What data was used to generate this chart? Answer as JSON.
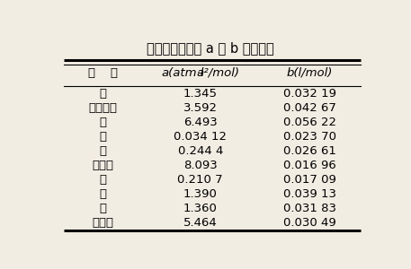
{
  "title": "范德瓦耳斯常数 a 和 b 的实测值",
  "rows": [
    [
      "氩",
      "1.345",
      "0.032 19"
    ],
    [
      "二氧化碳",
      "3.592",
      "0.042 67"
    ],
    [
      "氯",
      "6.493",
      "0.056 22"
    ],
    [
      "氦",
      "0.034 12",
      "0.023 70"
    ],
    [
      "氢",
      "0.244 4",
      "0.026 61"
    ],
    [
      "汞蒸气",
      "8.093",
      "0.016 96"
    ],
    [
      "氖",
      "0.210 7",
      "0.017 09"
    ],
    [
      "氮",
      "1.390",
      "0.039 13"
    ],
    [
      "氧",
      "1.360",
      "0.031 83"
    ],
    [
      "水蒸气",
      "5.464",
      "0.030 49"
    ]
  ],
  "background_color": "#f2ede3",
  "text_color": "#000000",
  "title_fontsize": 10.5,
  "header_fontsize": 9.5,
  "row_fontsize": 9.5,
  "figsize": [
    4.57,
    3.0
  ],
  "dpi": 100
}
